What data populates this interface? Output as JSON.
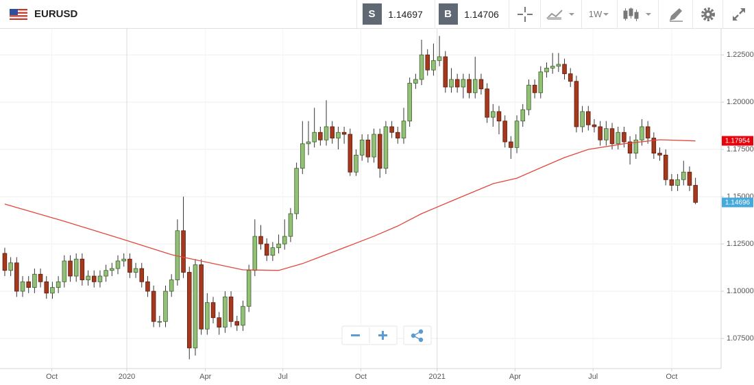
{
  "toolbar": {
    "sell": "S",
    "sell_price": "1.14697",
    "buy": "B",
    "buy_price": "1.14706",
    "timeframe": "1W"
  },
  "chart_data": {
    "type": "candlestick",
    "title": "EURUSD",
    "x": [
      0,
      1,
      2,
      3,
      4,
      5,
      6,
      7,
      8,
      9,
      10,
      11,
      12,
      13,
      14,
      15,
      16,
      17,
      18,
      19,
      20,
      21,
      22,
      23,
      24,
      25,
      26,
      27,
      28,
      29,
      30,
      31,
      32,
      33,
      34,
      35,
      36,
      37,
      38,
      39,
      40,
      41,
      42,
      43,
      44,
      45,
      46,
      47,
      48,
      49,
      50,
      51,
      52,
      53,
      54,
      55,
      56,
      57,
      58,
      59,
      60,
      61,
      62,
      63,
      64,
      65,
      66,
      67,
      68,
      69,
      70,
      71,
      72,
      73,
      74,
      75,
      76,
      77,
      78,
      79,
      80,
      81,
      82,
      83,
      84,
      85,
      86,
      87,
      88,
      89,
      90,
      91,
      92,
      93,
      94,
      95,
      96,
      97,
      98,
      99,
      100,
      101,
      102,
      103,
      104,
      105,
      106,
      107,
      108,
      109,
      110,
      111,
      112,
      113,
      114,
      115,
      116
    ],
    "open": [
      1.12,
      1.111,
      1.115,
      1.1,
      1.105,
      1.102,
      1.109,
      1.105,
      1.099,
      1.102,
      1.105,
      1.116,
      1.108,
      1.117,
      1.106,
      1.108,
      1.105,
      1.108,
      1.111,
      1.112,
      1.116,
      1.117,
      1.11,
      1.112,
      1.105,
      1.1,
      1.084,
      1.084,
      1.1,
      1.106,
      1.132,
      1.11,
      1.07,
      1.114,
      1.08,
      1.094,
      1.086,
      1.081,
      1.097,
      1.084,
      1.082,
      1.092,
      1.111,
      1.129,
      1.125,
      1.119,
      1.123,
      1.125,
      1.129,
      1.141,
      1.165,
      1.178,
      1.179,
      1.184,
      1.18,
      1.187,
      1.181,
      1.184,
      1.183,
      1.163,
      1.172,
      1.18,
      1.171,
      1.183,
      1.165,
      1.187,
      1.184,
      1.181,
      1.19,
      1.21,
      1.212,
      1.225,
      1.217,
      1.222,
      1.224,
      1.208,
      1.212,
      1.208,
      1.212,
      1.205,
      1.212,
      1.207,
      1.192,
      1.195,
      1.19,
      1.179,
      1.176,
      1.19,
      1.196,
      1.209,
      1.205,
      1.216,
      1.218,
      1.219,
      1.22,
      1.215,
      1.211,
      1.187,
      1.195,
      1.188,
      1.187,
      1.18,
      1.186,
      1.178,
      1.184,
      1.179,
      1.173,
      1.18,
      1.187,
      1.181,
      1.173,
      1.172,
      1.159,
      1.156,
      1.159,
      1.163,
      1.156
    ],
    "high": [
      1.123,
      1.118,
      1.118,
      1.108,
      1.108,
      1.112,
      1.112,
      1.108,
      1.105,
      1.108,
      1.119,
      1.119,
      1.12,
      1.12,
      1.111,
      1.111,
      1.111,
      1.114,
      1.115,
      1.119,
      1.12,
      1.12,
      1.115,
      1.115,
      1.108,
      1.103,
      1.087,
      1.103,
      1.109,
      1.138,
      1.15,
      1.113,
      1.117,
      1.117,
      1.099,
      1.097,
      1.089,
      1.1,
      1.1,
      1.087,
      1.095,
      1.114,
      1.138,
      1.135,
      1.128,
      1.126,
      1.13,
      1.138,
      1.144,
      1.168,
      1.19,
      1.19,
      1.197,
      1.187,
      1.201,
      1.19,
      1.187,
      1.187,
      1.186,
      1.175,
      1.183,
      1.183,
      1.186,
      1.186,
      1.19,
      1.19,
      1.187,
      1.197,
      1.213,
      1.215,
      1.233,
      1.228,
      1.231,
      1.235,
      1.227,
      1.218,
      1.215,
      1.215,
      1.215,
      1.224,
      1.215,
      1.21,
      1.199,
      1.198,
      1.193,
      1.182,
      1.193,
      1.199,
      1.212,
      1.212,
      1.219,
      1.221,
      1.226,
      1.226,
      1.223,
      1.218,
      1.214,
      1.198,
      1.198,
      1.191,
      1.19,
      1.19,
      1.189,
      1.187,
      1.187,
      1.182,
      1.183,
      1.191,
      1.19,
      1.184,
      1.176,
      1.175,
      1.162,
      1.162,
      1.169,
      1.166,
      1.16
    ],
    "low": [
      1.108,
      1.108,
      1.097,
      1.097,
      1.099,
      1.099,
      1.102,
      1.096,
      1.096,
      1.099,
      1.102,
      1.105,
      1.105,
      1.103,
      1.103,
      1.102,
      1.102,
      1.105,
      1.108,
      1.109,
      1.113,
      1.107,
      1.107,
      1.102,
      1.097,
      1.081,
      1.081,
      1.081,
      1.097,
      1.103,
      1.107,
      1.064,
      1.066,
      1.077,
      1.077,
      1.083,
      1.077,
      1.078,
      1.081,
      1.079,
      1.079,
      1.089,
      1.108,
      1.122,
      1.116,
      1.116,
      1.12,
      1.122,
      1.126,
      1.138,
      1.162,
      1.172,
      1.176,
      1.177,
      1.177,
      1.178,
      1.175,
      1.178,
      1.161,
      1.161,
      1.169,
      1.168,
      1.168,
      1.16,
      1.162,
      1.181,
      1.178,
      1.178,
      1.187,
      1.207,
      1.209,
      1.214,
      1.214,
      1.219,
      1.205,
      1.205,
      1.205,
      1.202,
      1.202,
      1.202,
      1.204,
      1.189,
      1.187,
      1.183,
      1.176,
      1.17,
      1.173,
      1.187,
      1.193,
      1.202,
      1.202,
      1.213,
      1.215,
      1.216,
      1.212,
      1.208,
      1.184,
      1.184,
      1.185,
      1.184,
      1.177,
      1.177,
      1.175,
      1.175,
      1.176,
      1.167,
      1.17,
      1.177,
      1.178,
      1.17,
      1.169,
      1.156,
      1.153,
      1.153,
      1.156,
      1.153,
      1.146
    ],
    "close": [
      1.111,
      1.115,
      1.1,
      1.105,
      1.102,
      1.109,
      1.105,
      1.099,
      1.102,
      1.105,
      1.116,
      1.108,
      1.117,
      1.106,
      1.108,
      1.105,
      1.108,
      1.111,
      1.112,
      1.116,
      1.117,
      1.11,
      1.112,
      1.105,
      1.1,
      1.084,
      1.084,
      1.1,
      1.106,
      1.132,
      1.11,
      1.07,
      1.114,
      1.08,
      1.094,
      1.086,
      1.081,
      1.097,
      1.084,
      1.082,
      1.092,
      1.111,
      1.129,
      1.125,
      1.119,
      1.123,
      1.125,
      1.129,
      1.141,
      1.165,
      1.178,
      1.179,
      1.184,
      1.18,
      1.187,
      1.181,
      1.184,
      1.183,
      1.163,
      1.172,
      1.18,
      1.171,
      1.183,
      1.165,
      1.187,
      1.184,
      1.181,
      1.19,
      1.21,
      1.212,
      1.225,
      1.217,
      1.222,
      1.224,
      1.208,
      1.212,
      1.208,
      1.212,
      1.205,
      1.212,
      1.207,
      1.192,
      1.195,
      1.19,
      1.179,
      1.176,
      1.19,
      1.196,
      1.209,
      1.205,
      1.216,
      1.218,
      1.219,
      1.22,
      1.215,
      1.211,
      1.187,
      1.195,
      1.188,
      1.187,
      1.18,
      1.186,
      1.178,
      1.184,
      1.179,
      1.173,
      1.18,
      1.187,
      1.181,
      1.173,
      1.172,
      1.159,
      1.156,
      1.159,
      1.163,
      1.156,
      1.147
    ],
    "up_color": "#93c077",
    "down_color": "#a5391e",
    "moving_average": {
      "color": "#e2473d",
      "x": [
        0,
        10,
        20,
        28,
        34,
        40,
        46,
        50,
        56,
        62,
        66,
        70,
        76,
        82,
        86,
        90,
        94,
        98,
        104,
        110,
        116
      ],
      "values": [
        1.1461,
        1.137,
        1.1273,
        1.1193,
        1.1153,
        1.1113,
        1.111,
        1.1146,
        1.1218,
        1.1291,
        1.1345,
        1.141,
        1.149,
        1.1569,
        1.1598,
        1.1653,
        1.1707,
        1.175,
        1.178,
        1.1801,
        1.1795
      ]
    },
    "price_labels": [
      {
        "value": 1.17954,
        "color": "#e8000b"
      },
      {
        "value": 1.14696,
        "color": "#45a9dc"
      }
    ],
    "xlim": [
      -0.8,
      120.3
    ],
    "ylim": [
      1.0591,
      1.2388
    ],
    "grid": true,
    "xticks": [
      {
        "value": 7.9,
        "label": "Oct"
      },
      {
        "value": 20.5,
        "label": "2020"
      },
      {
        "value": 33.7,
        "label": "Apr"
      },
      {
        "value": 46.7,
        "label": "Jul"
      },
      {
        "value": 59.8,
        "label": "Oct"
      },
      {
        "value": 72.6,
        "label": "2021"
      },
      {
        "value": 85.7,
        "label": "Apr"
      },
      {
        "value": 98.8,
        "label": "Jul"
      },
      {
        "value": 112.0,
        "label": "Oct"
      }
    ],
    "yticks": [
      {
        "value": 1.075,
        "label": "1.07500"
      },
      {
        "value": 1.1,
        "label": "1.10000"
      },
      {
        "value": 1.125,
        "label": "1.12500"
      },
      {
        "value": 1.15,
        "label": "1.15000"
      },
      {
        "value": 1.175,
        "label": "1.17500"
      },
      {
        "value": 1.2,
        "label": "1.20000"
      },
      {
        "value": 1.225,
        "label": "1.22500"
      }
    ]
  }
}
